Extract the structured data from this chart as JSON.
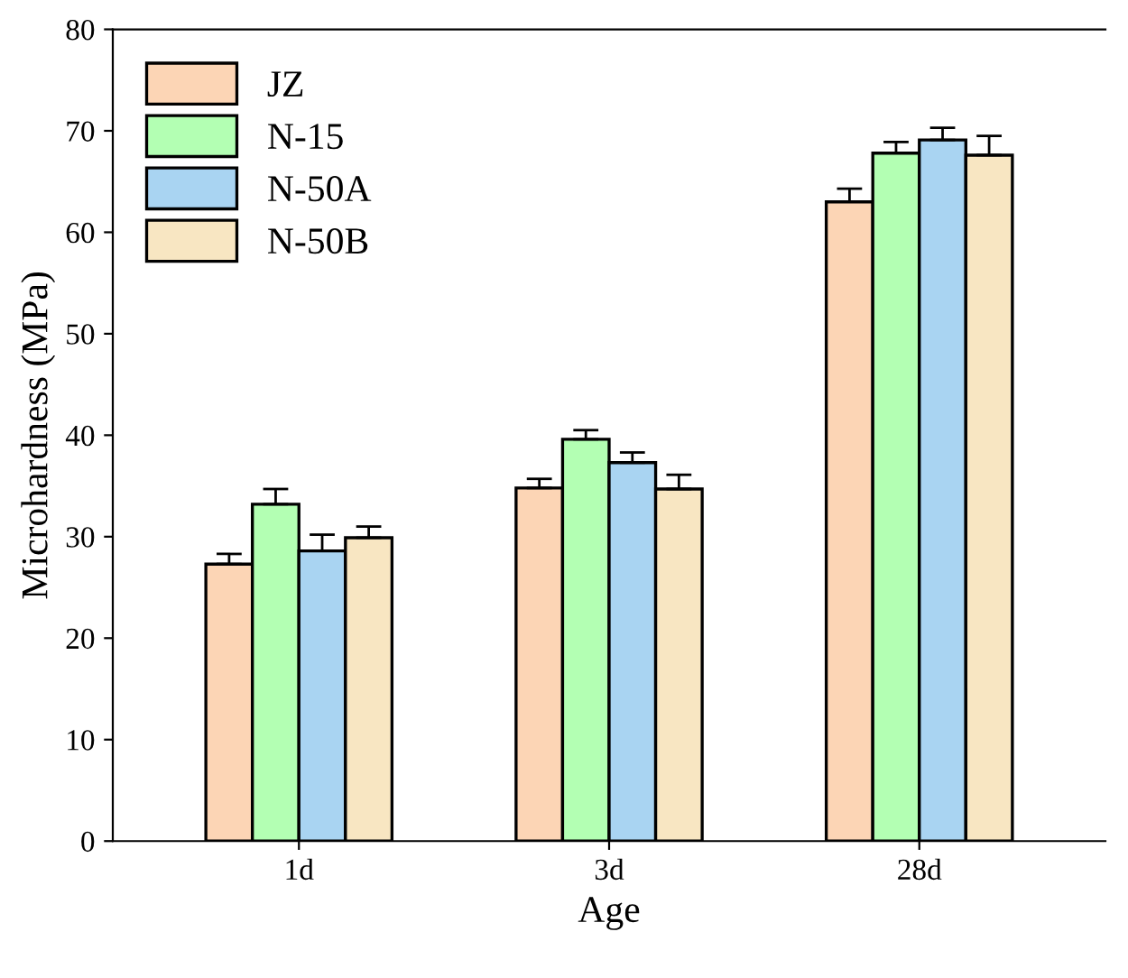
{
  "chart_data": {
    "type": "bar",
    "xlabel": "Age",
    "ylabel": "Microhardness (MPa)",
    "categories": [
      "1d",
      "3d",
      "28d"
    ],
    "series": [
      {
        "name": "JZ",
        "color": "#fcd5b5",
        "values": [
          27.3,
          34.8,
          63.0
        ],
        "errors": [
          [
            27.3,
            28.3
          ],
          [
            34.8,
            35.7
          ],
          [
            63.0,
            64.3
          ]
        ]
      },
      {
        "name": "N-15",
        "color": "#b3ffb3",
        "values": [
          33.2,
          39.6,
          67.8
        ],
        "errors": [
          [
            33.2,
            34.7
          ],
          [
            39.6,
            40.5
          ],
          [
            67.8,
            68.9
          ]
        ]
      },
      {
        "name": "N-50A",
        "color": "#a9d4f2",
        "values": [
          28.6,
          37.3,
          69.1
        ],
        "errors": [
          [
            28.6,
            30.2
          ],
          [
            37.3,
            38.3
          ],
          [
            69.1,
            70.3
          ]
        ]
      },
      {
        "name": "N-50B",
        "color": "#f8e6c2",
        "values": [
          29.9,
          34.7,
          67.6
        ],
        "errors": [
          [
            29.9,
            31.0
          ],
          [
            34.7,
            36.1
          ],
          [
            67.6,
            69.5
          ]
        ]
      }
    ],
    "ylim": [
      0,
      80
    ],
    "yticks": [
      0,
      10,
      20,
      30,
      40,
      50,
      60,
      70,
      80
    ],
    "grid": false,
    "legend": "top left"
  }
}
